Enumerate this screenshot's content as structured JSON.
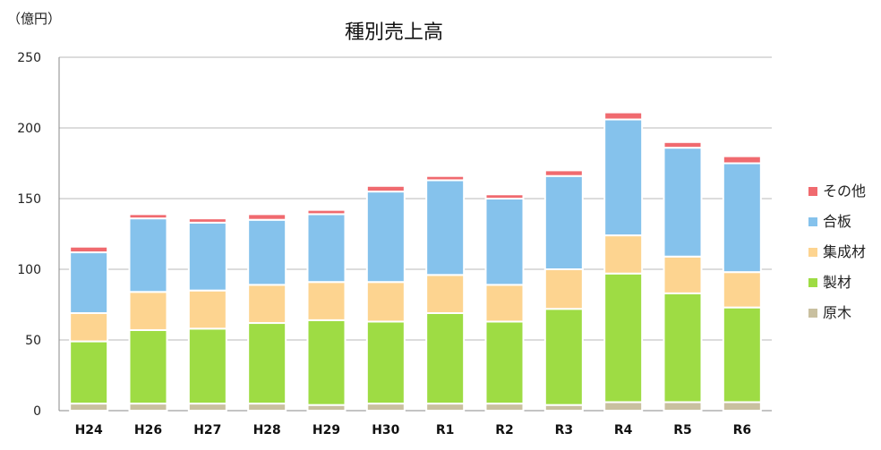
{
  "chart_data": {
    "type": "bar",
    "stacked": true,
    "title": "種別売上高",
    "unit_label": "（億円）",
    "xlabel": "",
    "ylabel": "",
    "ylim": [
      0,
      250
    ],
    "yticks": [
      0,
      50,
      100,
      150,
      200,
      250
    ],
    "grid": true,
    "legend_position": "right",
    "categories": [
      "H24",
      "H26",
      "H27",
      "H28",
      "H29",
      "H30",
      "R1",
      "R2",
      "R3",
      "R4",
      "R5",
      "R6"
    ],
    "series": [
      {
        "name": "原木",
        "color": "#c9c0a0",
        "values": [
          5,
          5,
          5,
          5,
          4,
          5,
          5,
          5,
          4,
          6,
          6,
          6
        ]
      },
      {
        "name": "製材",
        "color": "#9edc44",
        "values": [
          44,
          52,
          53,
          57,
          60,
          58,
          64,
          58,
          68,
          91,
          77,
          67
        ]
      },
      {
        "name": "集成材",
        "color": "#fdd490",
        "values": [
          20,
          27,
          27,
          27,
          27,
          28,
          27,
          26,
          28,
          27,
          26,
          25
        ]
      },
      {
        "name": "合板",
        "color": "#85c2ec",
        "values": [
          43,
          52,
          48,
          46,
          48,
          64,
          67,
          61,
          66,
          82,
          77,
          77
        ]
      },
      {
        "name": "その他",
        "color": "#f06a6f",
        "values": [
          4,
          3,
          3,
          4,
          3,
          4,
          3,
          3,
          4,
          5,
          4,
          5
        ]
      }
    ]
  }
}
